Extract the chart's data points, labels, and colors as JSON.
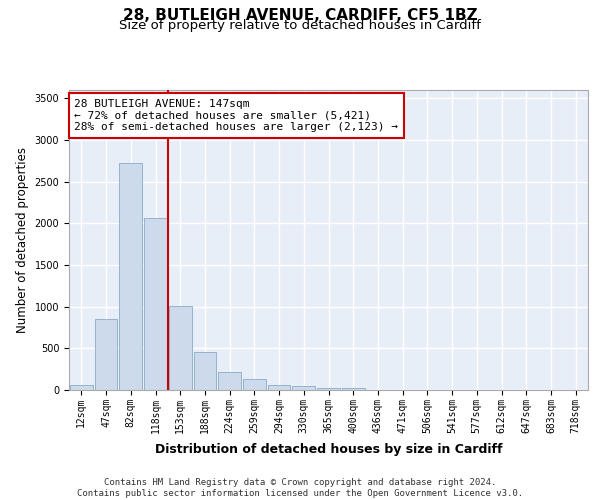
{
  "title1": "28, BUTLEIGH AVENUE, CARDIFF, CF5 1BZ",
  "title2": "Size of property relative to detached houses in Cardiff",
  "xlabel": "Distribution of detached houses by size in Cardiff",
  "ylabel": "Number of detached properties",
  "footer1": "Contains HM Land Registry data © Crown copyright and database right 2024.",
  "footer2": "Contains public sector information licensed under the Open Government Licence v3.0.",
  "annotation_title": "28 BUTLEIGH AVENUE: 147sqm",
  "annotation_line1": "← 72% of detached houses are smaller (5,421)",
  "annotation_line2": "28% of semi-detached houses are larger (2,123) →",
  "bar_color": "#ccdaeb",
  "bar_edge_color": "#7aa0c0",
  "vline_color": "#cc0000",
  "annotation_box_color": "#cc0000",
  "background_color": "#e8eef8",
  "grid_color": "#ffffff",
  "categories": [
    "12sqm",
    "47sqm",
    "82sqm",
    "118sqm",
    "153sqm",
    "188sqm",
    "224sqm",
    "259sqm",
    "294sqm",
    "330sqm",
    "365sqm",
    "400sqm",
    "436sqm",
    "471sqm",
    "506sqm",
    "541sqm",
    "577sqm",
    "612sqm",
    "647sqm",
    "683sqm",
    "718sqm"
  ],
  "values": [
    60,
    850,
    2730,
    2060,
    1010,
    460,
    220,
    130,
    60,
    50,
    30,
    20,
    5,
    5,
    5,
    0,
    0,
    0,
    0,
    0,
    0
  ],
  "ylim": [
    0,
    3600
  ],
  "yticks": [
    0,
    500,
    1000,
    1500,
    2000,
    2500,
    3000,
    3500
  ],
  "vline_bin": 3,
  "title1_fontsize": 11,
  "title2_fontsize": 9.5,
  "annotation_fontsize": 8,
  "tick_fontsize": 7,
  "ylabel_fontsize": 8.5,
  "xlabel_fontsize": 9,
  "footer_fontsize": 6.5
}
